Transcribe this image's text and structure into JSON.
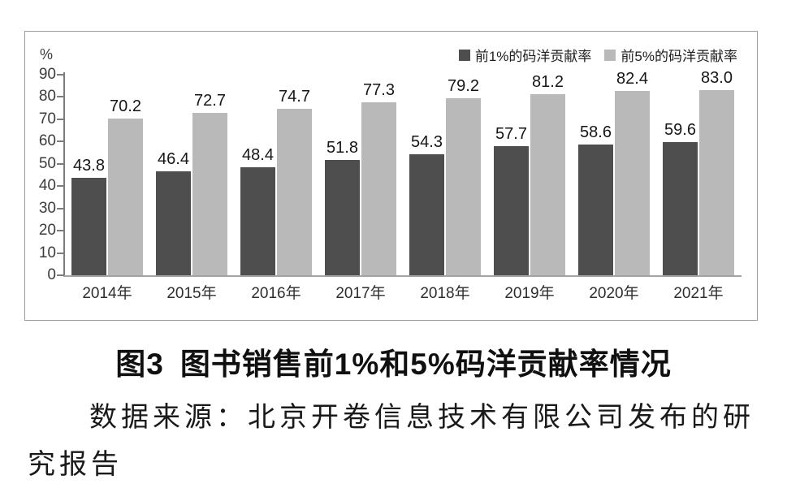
{
  "figure_caption": {
    "fig_label": "图3",
    "title": "图书销售前1%和5%码洋贡献率情况",
    "source": "数据来源：北京开卷信息技术有限公司发布的研究报告"
  },
  "chart_data": {
    "type": "bar",
    "categories": [
      "2014年",
      "2015年",
      "2016年",
      "2017年",
      "2018年",
      "2019年",
      "2020年",
      "2021年"
    ],
    "series": [
      {
        "key": "top1",
        "name": "前1%的码洋贡献率",
        "color": "#4e4e4e",
        "values": [
          43.8,
          46.4,
          48.4,
          51.8,
          54.3,
          57.7,
          58.6,
          59.6
        ],
        "labels": [
          "43.8",
          "46.4",
          "48.4",
          "51.8",
          "54.3",
          "57.7",
          "58.6",
          "59.6"
        ]
      },
      {
        "key": "top5",
        "name": "前5%的码洋贡献率",
        "color": "#b9b9b9",
        "values": [
          70.2,
          72.7,
          74.7,
          77.3,
          79.2,
          81.2,
          82.4,
          83.0
        ],
        "labels": [
          "70.2",
          "72.7",
          "74.7",
          "77.3",
          "79.2",
          "81.2",
          "82.4",
          "83.0"
        ]
      }
    ],
    "ylabel": "%",
    "ylim": [
      0,
      90
    ],
    "yticks": [
      0,
      10,
      20,
      30,
      40,
      50,
      60,
      70,
      80,
      90
    ],
    "legend_position": "top-right",
    "grid": false,
    "value_labels_shown": true
  }
}
